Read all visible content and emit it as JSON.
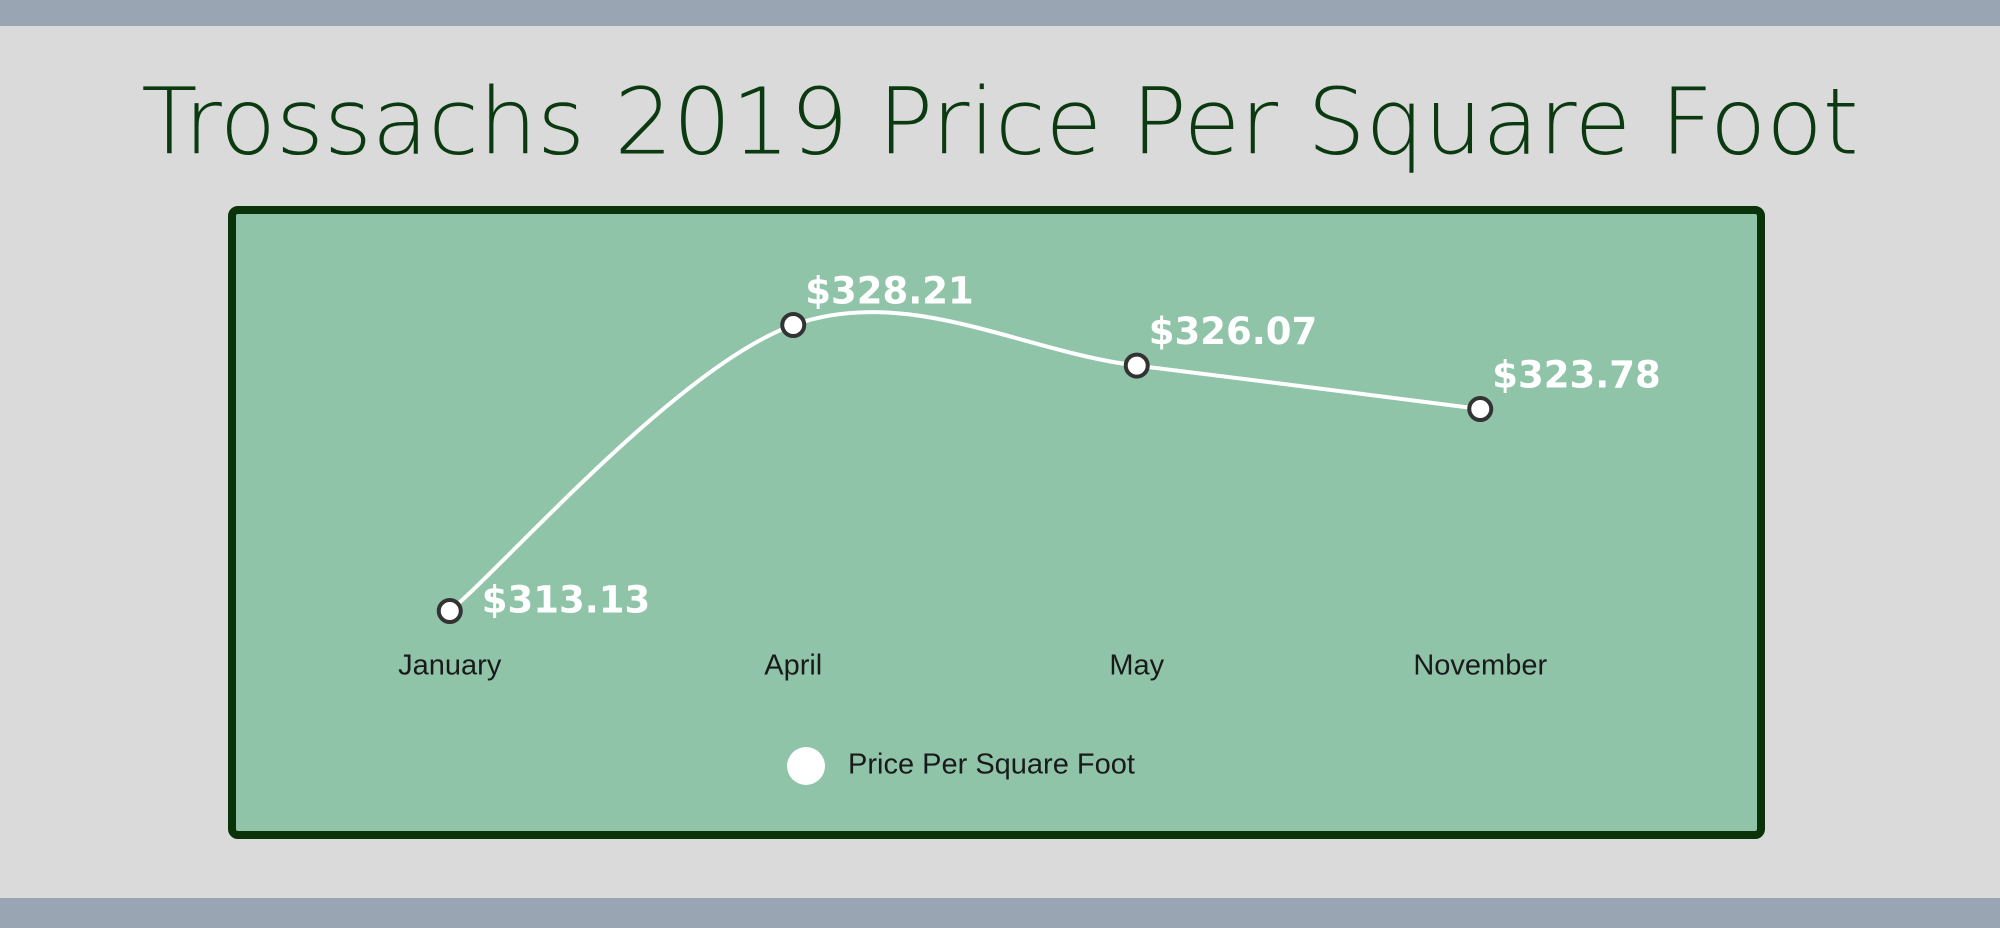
{
  "chart_data": {
    "type": "line",
    "title": "Trossachs 2019 Price Per Square Foot",
    "categories": [
      "January",
      "April",
      "May",
      "November"
    ],
    "series": [
      {
        "name": "Price Per Square Foot",
        "color": "#ffffff",
        "values": [
          313.13,
          328.21,
          326.07,
          323.78
        ],
        "value_labels": [
          "$313.13",
          "$328.21",
          "$326.07",
          "$323.78"
        ]
      }
    ],
    "legend": "bottom"
  }
}
